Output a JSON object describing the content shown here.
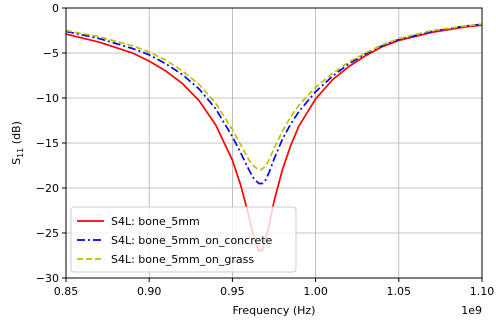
{
  "chart_data": {
    "type": "line",
    "xlabel": "Frequency (Hz)",
    "ylabel": "S",
    "ylabel_sub": "11",
    "ylabel_unit": " (dB)",
    "x_offset_label": "1e9",
    "xlim": [
      0.85,
      1.1
    ],
    "ylim": [
      -30,
      0
    ],
    "xticks": [
      0.85,
      0.9,
      0.95,
      1.0,
      1.05,
      1.1
    ],
    "xtick_labels": [
      "0.85",
      "0.90",
      "0.95",
      "1.00",
      "1.05",
      "1.10"
    ],
    "yticks": [
      0,
      -5,
      -10,
      -15,
      -20,
      -25,
      -30
    ],
    "ytick_labels": [
      "0",
      "−5",
      "−10",
      "−15",
      "−20",
      "−25",
      "−30"
    ],
    "grid": true,
    "legend_position": "lower-left",
    "series": [
      {
        "name": "S4L: bone_5mm",
        "color": "#ff0000",
        "style": "solid",
        "x": [
          0.85,
          0.87,
          0.89,
          0.9,
          0.91,
          0.92,
          0.93,
          0.94,
          0.95,
          0.955,
          0.96,
          0.963,
          0.966,
          0.968,
          0.97,
          0.972,
          0.975,
          0.98,
          0.985,
          0.99,
          1.0,
          1.01,
          1.02,
          1.03,
          1.04,
          1.05,
          1.07,
          1.09,
          1.1
        ],
        "y": [
          -2.9,
          -3.8,
          -5.0,
          -5.9,
          -7.0,
          -8.4,
          -10.3,
          -13.0,
          -16.9,
          -19.7,
          -23.2,
          -25.6,
          -27.0,
          -26.9,
          -25.8,
          -24.2,
          -21.5,
          -18.0,
          -15.3,
          -13.1,
          -10.1,
          -8.0,
          -6.5,
          -5.3,
          -4.3,
          -3.6,
          -2.7,
          -2.1,
          -1.9
        ]
      },
      {
        "name": "S4L: bone_5mm_on_concrete",
        "color": "#0000ff",
        "style": "dashdot",
        "x": [
          0.85,
          0.87,
          0.89,
          0.9,
          0.91,
          0.92,
          0.93,
          0.94,
          0.95,
          0.955,
          0.96,
          0.963,
          0.966,
          0.968,
          0.97,
          0.972,
          0.975,
          0.98,
          0.985,
          0.99,
          1.0,
          1.01,
          1.02,
          1.03,
          1.04,
          1.05,
          1.07,
          1.09,
          1.1
        ],
        "y": [
          -2.6,
          -3.4,
          -4.5,
          -5.2,
          -6.2,
          -7.4,
          -9.0,
          -11.2,
          -14.3,
          -16.1,
          -18.0,
          -19.0,
          -19.5,
          -19.5,
          -19.1,
          -18.3,
          -16.8,
          -14.6,
          -12.9,
          -11.5,
          -9.3,
          -7.6,
          -6.2,
          -5.1,
          -4.2,
          -3.5,
          -2.6,
          -2.0,
          -1.8
        ]
      },
      {
        "name": "S4L: bone_5mm_on_grass",
        "color": "#bfbf00",
        "style": "dashed",
        "x": [
          0.85,
          0.87,
          0.89,
          0.9,
          0.91,
          0.92,
          0.93,
          0.94,
          0.95,
          0.955,
          0.96,
          0.963,
          0.966,
          0.968,
          0.97,
          0.972,
          0.975,
          0.98,
          0.985,
          0.99,
          1.0,
          1.01,
          1.02,
          1.03,
          1.04,
          1.05,
          1.07,
          1.09,
          1.1
        ],
        "y": [
          -2.5,
          -3.2,
          -4.2,
          -4.9,
          -5.8,
          -7.0,
          -8.5,
          -10.6,
          -13.5,
          -15.2,
          -16.9,
          -17.6,
          -18.0,
          -17.9,
          -17.5,
          -16.9,
          -15.6,
          -13.7,
          -12.1,
          -10.8,
          -8.8,
          -7.3,
          -6.0,
          -5.0,
          -4.1,
          -3.4,
          -2.5,
          -2.0,
          -1.8
        ]
      }
    ]
  }
}
